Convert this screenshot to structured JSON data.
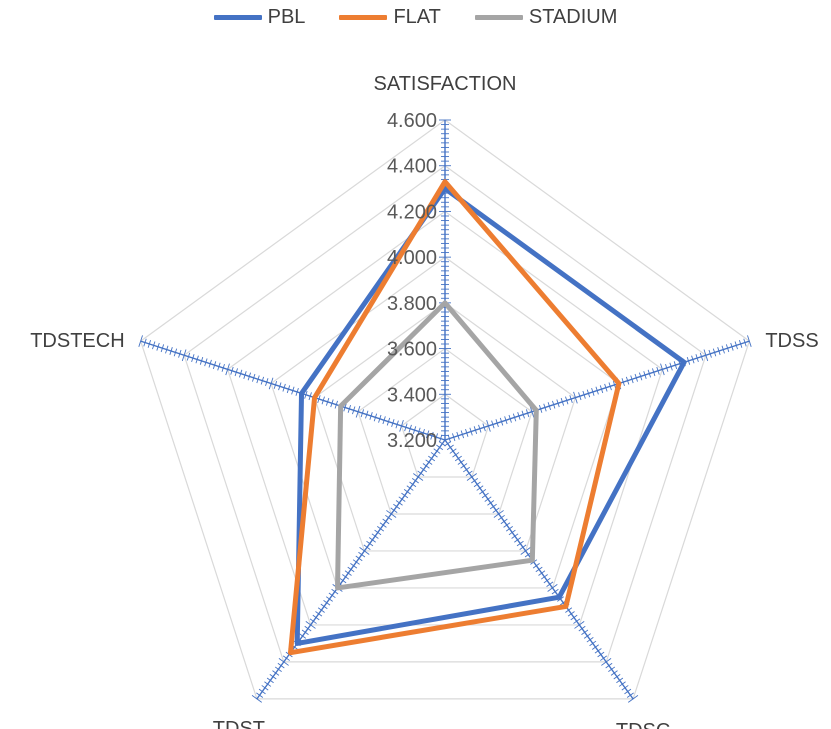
{
  "chart_data": {
    "type": "radar",
    "axes": [
      "SATISFACTION",
      "TDSS",
      "TDSC",
      "TDST",
      "TDSTECH"
    ],
    "rlim": [
      3.2,
      4.6
    ],
    "ticks": [
      "3.200",
      "3.400",
      "3.600",
      "3.800",
      "4.000",
      "4.200",
      "4.400",
      "4.600"
    ],
    "series": [
      {
        "name": "PBL",
        "color": "#4472c4",
        "values": [
          4.3,
          4.3,
          4.05,
          4.3,
          3.86
        ]
      },
      {
        "name": "FLAT",
        "color": "#ed7d31",
        "values": [
          4.33,
          4.0,
          4.1,
          4.35,
          3.8
        ]
      },
      {
        "name": "STADIUM",
        "color": "#a5a5a5",
        "values": [
          3.8,
          3.62,
          3.85,
          4.0,
          3.68
        ]
      }
    ],
    "legend_position": "top",
    "grid": true
  }
}
